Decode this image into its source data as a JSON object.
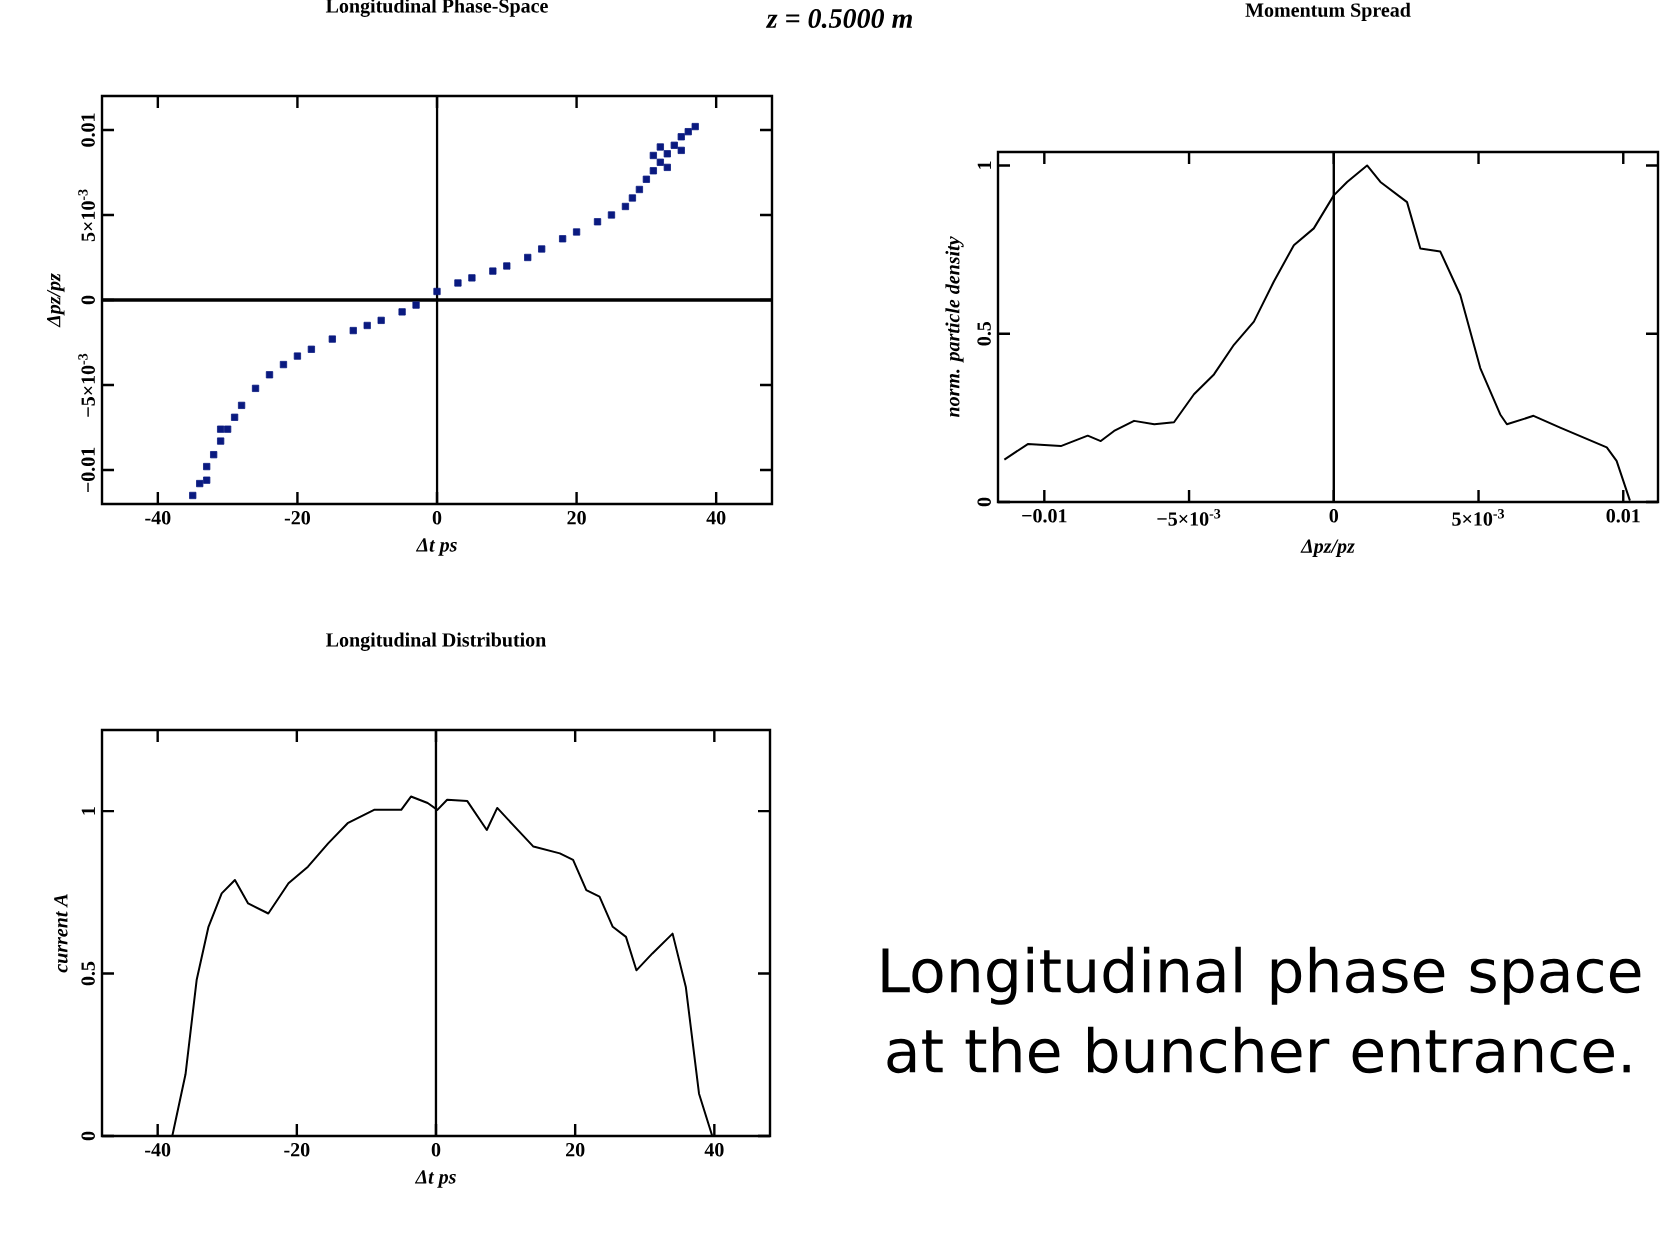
{
  "chart_data": [
    {
      "type": "scatter",
      "title": "Longitudinal Phase-Space",
      "xlabel": "Δt ps",
      "ylabel": "Δpz/pz",
      "marker": "square",
      "color": "#0a1a80",
      "x": [
        -35,
        -34,
        -33,
        -32,
        -31,
        -30,
        -29,
        -28,
        -26,
        -24,
        -22,
        -20,
        -18,
        -15,
        -12,
        -10,
        -8,
        -5,
        -3,
        0,
        3,
        5,
        8,
        10,
        13,
        15,
        18,
        20,
        23,
        25,
        27,
        28,
        29,
        30,
        31,
        32,
        33,
        34,
        35,
        36,
        37,
        -33,
        -31,
        31,
        33,
        35,
        32
      ],
      "values": [
        -0.0115,
        -0.0108,
        -0.0098,
        -0.0091,
        -0.0083,
        -0.0076,
        -0.0069,
        -0.0062,
        -0.0052,
        -0.0044,
        -0.0038,
        -0.0033,
        -0.0029,
        -0.0023,
        -0.0018,
        -0.0015,
        -0.0012,
        -0.0007,
        -0.0003,
        0.0005,
        0.001,
        0.0013,
        0.0017,
        0.002,
        0.0025,
        0.003,
        0.0036,
        0.004,
        0.0046,
        0.005,
        0.0055,
        0.006,
        0.0065,
        0.0071,
        0.0076,
        0.0081,
        0.0086,
        0.0091,
        0.0096,
        0.0099,
        0.0102,
        -0.0106,
        -0.0076,
        0.0085,
        0.0078,
        0.0088,
        0.009
      ],
      "xlim": [
        -48,
        48
      ],
      "ylim": [
        -0.012,
        0.012
      ],
      "xticks": [
        -40,
        -20,
        0,
        20,
        40
      ],
      "yticks": [
        {
          "value": -0.01,
          "label": "−0.01"
        },
        {
          "value": -0.005,
          "label": "−5×10$^{-3}$"
        },
        0,
        {
          "value": 0.005,
          "label": "5×10$^{-3}$"
        },
        0.01
      ],
      "ref_lines": [
        {
          "axis": "x",
          "value": 0
        },
        {
          "axis": "y",
          "value": 0
        }
      ]
    },
    {
      "type": "line",
      "title": "Momentum Spread",
      "xlabel": "Δpz/pz",
      "ylabel": "norm. particle density",
      "color": "#000000",
      "x": [
        -0.01138,
        -0.01057,
        -0.00943,
        -0.0085,
        -0.00805,
        -0.00759,
        -0.0069,
        -0.0062,
        -0.00552,
        -0.00483,
        -0.00414,
        -0.00345,
        -0.00276,
        -0.00207,
        -0.00138,
        -0.00069,
        0,
        0.00046,
        0.00115,
        0.00161,
        0.00253,
        0.00299,
        0.00368,
        0.00437,
        0.00506,
        0.00575,
        0.00598,
        0.0069,
        0.00782,
        0.00943,
        0.00977,
        0.01023
      ],
      "values": [
        0.126,
        0.172,
        0.166,
        0.197,
        0.181,
        0.211,
        0.241,
        0.231,
        0.237,
        0.32,
        0.379,
        0.467,
        0.536,
        0.655,
        0.763,
        0.813,
        0.911,
        0.951,
        1.0,
        0.951,
        0.891,
        0.753,
        0.744,
        0.615,
        0.398,
        0.26,
        0.231,
        0.256,
        0.221,
        0.162,
        0.122,
        0.004
      ],
      "xlim": [
        -0.0116,
        0.0112
      ],
      "ylim": [
        0,
        1.04
      ],
      "xticks": [
        {
          "value": -0.01,
          "label": "−0.01"
        },
        {
          "value": -0.005,
          "label": "−5×10$^{-3}$"
        },
        0,
        {
          "value": 0.005,
          "label": "5×10$^{-3}$"
        },
        0.01
      ],
      "yticks": [
        0,
        0.5,
        1
      ],
      "ref_lines": [
        {
          "axis": "x",
          "value": 0
        }
      ]
    },
    {
      "type": "line",
      "title": "Longitudinal Distribution",
      "xlabel": "Δt ps",
      "ylabel": "current A",
      "color": "#000000",
      "x": [
        -37.9,
        -36,
        -34.4,
        -32.7,
        -30.8,
        -28.9,
        -27,
        -24.1,
        -21.2,
        -18.4,
        -15.5,
        -12.7,
        -8.9,
        -5,
        -3.6,
        -1.2,
        0.2,
        1.6,
        4.5,
        7.3,
        8.8,
        11.1,
        14,
        17.8,
        19.7,
        21.6,
        23.5,
        25.4,
        27.3,
        28.8,
        31.1,
        34,
        35.9,
        37.8,
        39.7
      ],
      "values": [
        0,
        0.19,
        0.48,
        0.644,
        0.747,
        0.788,
        0.716,
        0.685,
        0.778,
        0.829,
        0.901,
        0.963,
        1.004,
        1.004,
        1.045,
        1.025,
        1.004,
        1.035,
        1.031,
        0.942,
        1.01,
        0.957,
        0.891,
        0.87,
        0.85,
        0.757,
        0.737,
        0.644,
        0.613,
        0.51,
        0.562,
        0.623,
        0.459,
        0.13,
        0
      ],
      "xlim": [
        -48,
        48
      ],
      "ylim": [
        0,
        1.25
      ],
      "xticks": [
        -40,
        -20,
        0,
        20,
        40
      ],
      "yticks": [
        0,
        0.5,
        1
      ],
      "ref_lines": [
        {
          "axis": "x",
          "value": 0
        }
      ]
    },
    {
      "type": "other",
      "title": "z = 0.5000 m",
      "annotations": [
        "Longitudinal phase space at the buncher entrance."
      ]
    }
  ]
}
